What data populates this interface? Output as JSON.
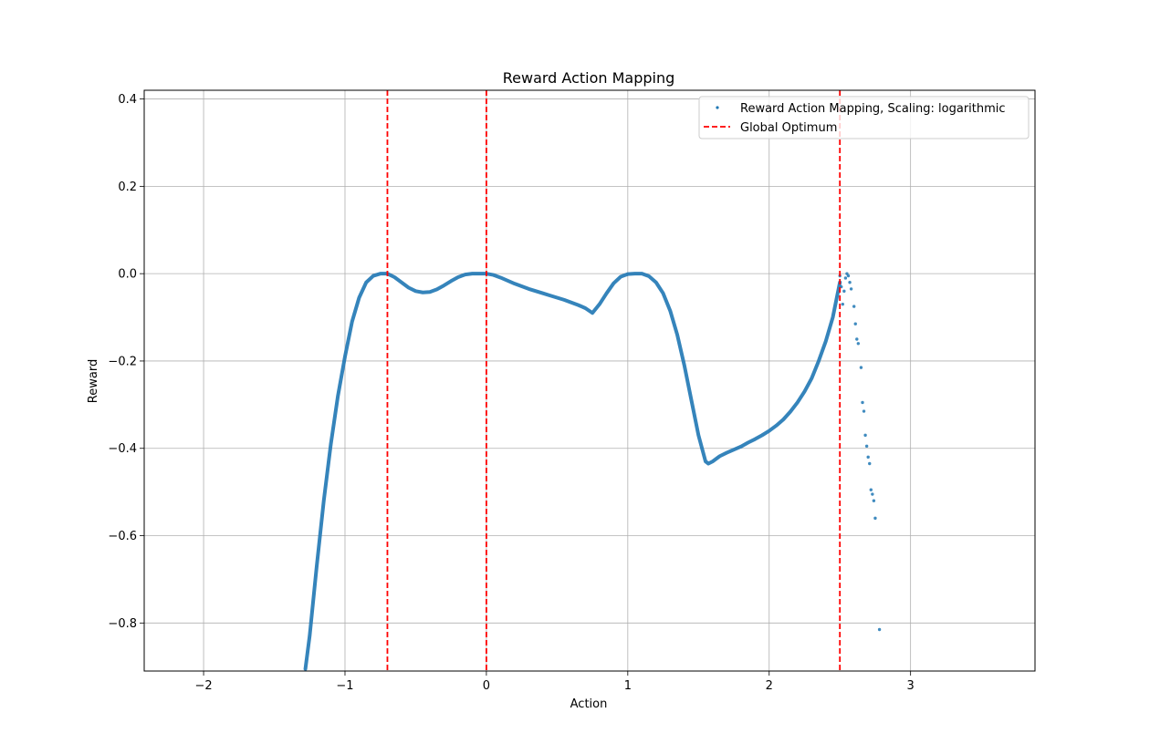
{
  "chart_data": {
    "type": "scatter",
    "title": "Reward Action Mapping",
    "xlabel": "Action",
    "ylabel": "Reward",
    "xlim": [
      -2.42,
      3.88
    ],
    "ylim": [
      -0.91,
      0.42
    ],
    "x_ticks": [
      -2,
      -1,
      0,
      1,
      2,
      3
    ],
    "x_tick_labels": [
      "−2",
      "−1",
      "0",
      "1",
      "2",
      "3"
    ],
    "y_ticks": [
      -0.8,
      -0.6,
      -0.4,
      -0.2,
      0.0,
      0.2,
      0.4
    ],
    "y_tick_labels": [
      "−0.8",
      "−0.6",
      "−0.4",
      "−0.2",
      "0.0",
      "0.2",
      "0.4"
    ],
    "grid": true,
    "legend_position": "top-right",
    "series": [
      {
        "name": "Reward Action Mapping, Scaling: logarithmic",
        "kind": "points",
        "color": "#1f77b4",
        "curve_x": [
          -1.28,
          -1.25,
          -1.2,
          -1.15,
          -1.1,
          -1.05,
          -1.0,
          -0.95,
          -0.9,
          -0.85,
          -0.8,
          -0.75,
          -0.7,
          -0.65,
          -0.6,
          -0.55,
          -0.5,
          -0.45,
          -0.4,
          -0.35,
          -0.3,
          -0.25,
          -0.2,
          -0.15,
          -0.1,
          -0.05,
          0.0,
          0.05,
          0.1,
          0.15,
          0.2,
          0.25,
          0.3,
          0.35,
          0.4,
          0.45,
          0.5,
          0.55,
          0.6,
          0.65,
          0.7,
          0.75,
          0.8,
          0.85,
          0.9,
          0.95,
          1.0,
          1.05,
          1.1,
          1.15,
          1.2,
          1.25,
          1.3,
          1.35,
          1.4,
          1.45,
          1.5,
          1.55,
          1.57,
          1.6,
          1.65,
          1.7,
          1.75,
          1.8,
          1.85,
          1.9,
          1.95,
          2.0,
          2.05,
          2.1,
          2.15,
          2.2,
          2.25,
          2.3,
          2.35,
          2.4,
          2.45,
          2.5
        ],
        "curve_y": [
          -0.905,
          -0.83,
          -0.67,
          -0.52,
          -0.39,
          -0.28,
          -0.19,
          -0.11,
          -0.055,
          -0.02,
          -0.005,
          0.0,
          0.0,
          -0.008,
          -0.02,
          -0.032,
          -0.04,
          -0.043,
          -0.042,
          -0.036,
          -0.027,
          -0.017,
          -0.008,
          -0.002,
          0.0,
          0.0,
          0.0,
          -0.003,
          -0.009,
          -0.016,
          -0.023,
          -0.029,
          -0.035,
          -0.04,
          -0.045,
          -0.05,
          -0.055,
          -0.06,
          -0.066,
          -0.072,
          -0.079,
          -0.09,
          -0.07,
          -0.045,
          -0.022,
          -0.007,
          -0.001,
          0.0,
          0.0,
          -0.006,
          -0.02,
          -0.045,
          -0.085,
          -0.14,
          -0.21,
          -0.29,
          -0.37,
          -0.43,
          -0.435,
          -0.43,
          -0.418,
          -0.41,
          -0.403,
          -0.396,
          -0.387,
          -0.379,
          -0.37,
          -0.36,
          -0.348,
          -0.334,
          -0.316,
          -0.295,
          -0.27,
          -0.24,
          -0.2,
          -0.155,
          -0.1,
          -0.02
        ],
        "sparse_x": [
          2.5,
          2.51,
          2.52,
          2.53,
          2.54,
          2.55,
          2.56,
          2.57,
          2.58,
          2.6,
          2.61,
          2.62,
          2.63,
          2.65,
          2.66,
          2.67,
          2.68,
          2.69,
          2.7,
          2.71,
          2.72,
          2.73,
          2.74,
          2.75,
          2.78
        ],
        "sparse_y": [
          -0.005,
          -0.03,
          -0.07,
          -0.04,
          -0.01,
          0.0,
          -0.005,
          -0.02,
          -0.035,
          -0.075,
          -0.115,
          -0.15,
          -0.16,
          -0.215,
          -0.295,
          -0.315,
          -0.37,
          -0.395,
          -0.42,
          -0.435,
          -0.495,
          -0.505,
          -0.52,
          -0.56,
          -0.815
        ]
      },
      {
        "name": "Global Optimum",
        "kind": "vlines",
        "color": "#ff0000",
        "x": [
          -0.7,
          0.0,
          2.5
        ]
      }
    ]
  }
}
